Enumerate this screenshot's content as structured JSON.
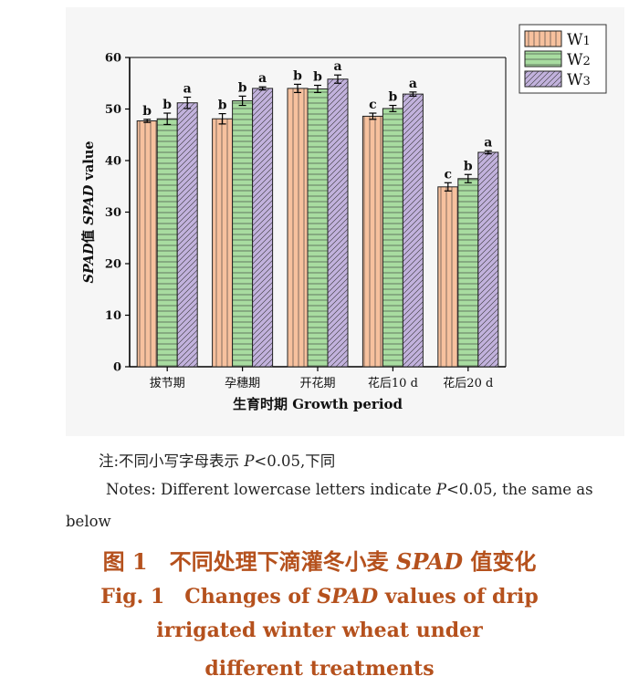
{
  "chart_data": {
    "type": "bar",
    "ylabel_parts": [
      "SPAD",
      "值 ",
      "SPAD",
      " value"
    ],
    "xlabel_parts": [
      "生育时期 ",
      "Growth period"
    ],
    "categories": [
      "拔节期",
      "孕穗期",
      "开花期",
      "花后10 d",
      "花后20 d"
    ],
    "ylim": [
      0,
      60
    ],
    "yticks": [
      0,
      10,
      20,
      30,
      40,
      50,
      60
    ],
    "legend_position": "top-right",
    "series": [
      {
        "name": "W1",
        "base": "W",
        "sub": "1",
        "color": "#f7c19e",
        "pattern": "vertical",
        "values": [
          47.7,
          48.1,
          54.0,
          48.6,
          34.9
        ],
        "errors": [
          0.3,
          1.0,
          0.8,
          0.6,
          0.8
        ],
        "letters": [
          "b",
          "b",
          "b",
          "c",
          "c"
        ]
      },
      {
        "name": "W2",
        "base": "W",
        "sub": "2",
        "color": "#a8dca0",
        "pattern": "horizontal",
        "values": [
          48.1,
          51.6,
          53.9,
          50.1,
          36.5
        ],
        "errors": [
          1.1,
          0.9,
          0.7,
          0.6,
          0.8
        ],
        "letters": [
          "b",
          "b",
          "b",
          "b",
          "b"
        ]
      },
      {
        "name": "W3",
        "base": "W",
        "sub": "3",
        "color": "#c2b2dd",
        "pattern": "diagonal",
        "values": [
          51.2,
          54.0,
          55.8,
          52.9,
          41.6
        ],
        "errors": [
          1.1,
          0.3,
          0.8,
          0.4,
          0.3
        ],
        "letters": [
          "a",
          "a",
          "a",
          "a",
          "a"
        ]
      }
    ]
  },
  "notes": {
    "cn_prefix": "注:不同小写字母表示 ",
    "cn_p": "P",
    "cn_suffix": "<0.05,下同",
    "en_prefix": "Notes: Different lowercase letters indicate ",
    "en_p": "P",
    "en_suffix": "<0.05, the same as",
    "en_tail": "below"
  },
  "caption": {
    "cn_prefix": "图 1　不同处理下滴灌冬小麦 ",
    "cn_em": "SPAD",
    "cn_suffix": " 值变化",
    "en_line1_prefix": "Fig. 1　Changes of ",
    "en_line1_em": "SPAD",
    "en_line1_suffix": " values of drip",
    "en_line2": "irrigated winter wheat under",
    "en_line3": "different treatments"
  }
}
